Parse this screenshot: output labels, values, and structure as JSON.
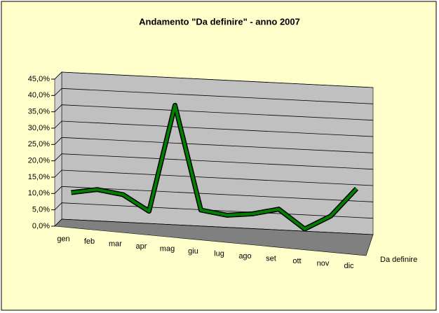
{
  "chart_data": {
    "type": "line3d",
    "title": "Andamento \"Da definire\" -  anno 2007",
    "categories": [
      "gen",
      "feb",
      "mar",
      "apr",
      "mag",
      "giu",
      "lug",
      "ago",
      "set",
      "ott",
      "nov",
      "dic"
    ],
    "series": [
      {
        "name": "Da definire",
        "color": "#008000",
        "values": [
          9.5,
          11,
          10,
          5.5,
          38.5,
          7,
          6,
          7,
          9,
          3.5,
          8,
          17
        ]
      }
    ],
    "ylim": [
      0,
      45
    ],
    "yticks": [
      {
        "value": 0,
        "label": "0,0%"
      },
      {
        "value": 5,
        "label": "5,0%"
      },
      {
        "value": 10,
        "label": "10,0%"
      },
      {
        "value": 15,
        "label": "15,0%"
      },
      {
        "value": 20,
        "label": "20,0%"
      },
      {
        "value": 25,
        "label": "25,0%"
      },
      {
        "value": 30,
        "label": "30,0%"
      },
      {
        "value": 35,
        "label": "35,0%"
      },
      {
        "value": 40,
        "label": "40,0%"
      },
      {
        "value": 45,
        "label": "45,0%"
      }
    ],
    "grid": true,
    "background": "#FFFFCC",
    "wall_color": "#C0C0C0",
    "floor_color": "#808080"
  }
}
